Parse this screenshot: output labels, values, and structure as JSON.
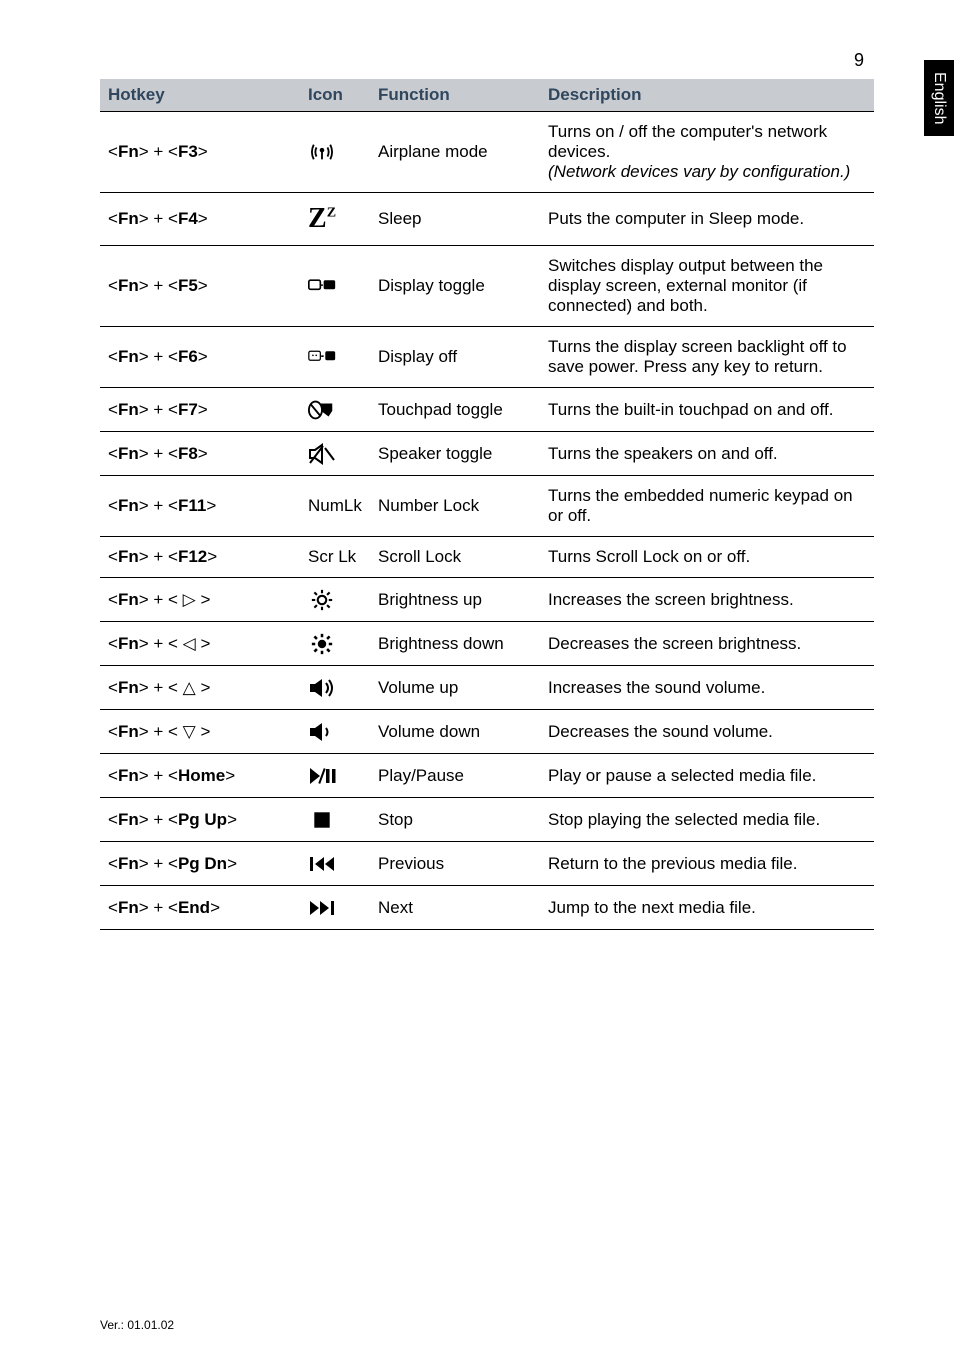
{
  "page_number": "9",
  "side_tab": "English",
  "footer": "Ver.: 01.01.02",
  "table": {
    "headers": {
      "hotkey": "Hotkey",
      "icon": "Icon",
      "function": "Function",
      "description": "Description"
    },
    "rows": [
      {
        "hotkey_html": "&lt;<b>Fn</b>&gt; + &lt;<b>F3</b>&gt;",
        "icon": "antenna",
        "func": "Airplane mode",
        "desc_html": "Turns on / off the computer's network devices.<br><span class='italic'>(Network devices vary by configuration.)</span>"
      },
      {
        "hotkey_html": "&lt;<b>Fn</b>&gt; + &lt;<b>F4</b>&gt;",
        "icon": "sleep-z",
        "func": "Sleep",
        "desc_html": "Puts the computer in Sleep mode."
      },
      {
        "hotkey_html": "&lt;<b>Fn</b>&gt; + &lt;<b>F5</b>&gt;",
        "icon": "display-toggle",
        "func": "Display toggle",
        "desc_html": "Switches display output between the display screen, external monitor (if connected) and both."
      },
      {
        "hotkey_html": "&lt;<b>Fn</b>&gt; + &lt;<b>F6</b>&gt;",
        "icon": "display-off",
        "func": "Display off",
        "desc_html": "Turns the display screen backlight off to save power. Press any key to return."
      },
      {
        "hotkey_html": "&lt;<b>Fn</b>&gt; + &lt;<b>F7</b>&gt;",
        "icon": "touchpad",
        "func": "Touchpad toggle",
        "desc_html": "Turns the built-in touchpad on and off."
      },
      {
        "hotkey_html": "&lt;<b>Fn</b>&gt; + &lt;<b>F8</b>&gt;",
        "icon": "speaker-mute",
        "func": "Speaker toggle",
        "desc_html": "Turns the speakers on and off."
      },
      {
        "hotkey_html": "&lt;<b>Fn</b>&gt; + &lt;<b>F11</b>&gt;",
        "icon_text": "NumLk",
        "func": "Number Lock",
        "desc_html": "Turns the embedded numeric keypad on or off."
      },
      {
        "hotkey_html": "&lt;<b>Fn</b>&gt; + &lt;<b>F12</b>&gt;",
        "icon_text": "Scr Lk",
        "func": "Scroll Lock",
        "desc_html": "Turns Scroll Lock on or off."
      },
      {
        "hotkey_html": "&lt;<b>Fn</b>&gt; + &lt; ▷ &gt;",
        "icon": "brightness-up",
        "func": "Brightness up",
        "desc_html": "Increases the screen brightness."
      },
      {
        "hotkey_html": "&lt;<b>Fn</b>&gt; + &lt; ◁ &gt;",
        "icon": "brightness-down",
        "func": "Brightness down",
        "desc_html": "Decreases the screen brightness."
      },
      {
        "hotkey_html": "&lt;<b>Fn</b>&gt; + &lt; △ &gt;",
        "icon": "volume-up",
        "func": "Volume up",
        "desc_html": "Increases the sound volume."
      },
      {
        "hotkey_html": "&lt;<b>Fn</b>&gt; + &lt; ▽ &gt;",
        "icon": "volume-down",
        "func": "Volume down",
        "desc_html": "Decreases the sound volume."
      },
      {
        "hotkey_html": "&lt;<b>Fn</b>&gt; + &lt;<b>Home</b>&gt;",
        "icon": "play-pause",
        "func": "Play/Pause",
        "desc_html": "Play or pause a selected media file."
      },
      {
        "hotkey_html": "&lt;<b>Fn</b>&gt; + &lt;<b>Pg Up</b>&gt;",
        "icon": "stop",
        "func": "Stop",
        "desc_html": "Stop playing the selected media file."
      },
      {
        "hotkey_html": "&lt;<b>Fn</b>&gt; + &lt;<b>Pg Dn</b>&gt;",
        "icon": "previous",
        "func": "Previous",
        "desc_html": "Return to the previous media file."
      },
      {
        "hotkey_html": "&lt;<b>Fn</b>&gt; + &lt;<b>End</b>&gt;",
        "icon": "next",
        "func": "Next",
        "desc_html": "Jump to the next media file."
      }
    ]
  },
  "colors": {
    "header_bg": "#c8cbd0",
    "header_text": "#30475e",
    "border": "#000000",
    "text": "#000000",
    "side_bg": "#000000",
    "side_text": "#ffffff"
  }
}
